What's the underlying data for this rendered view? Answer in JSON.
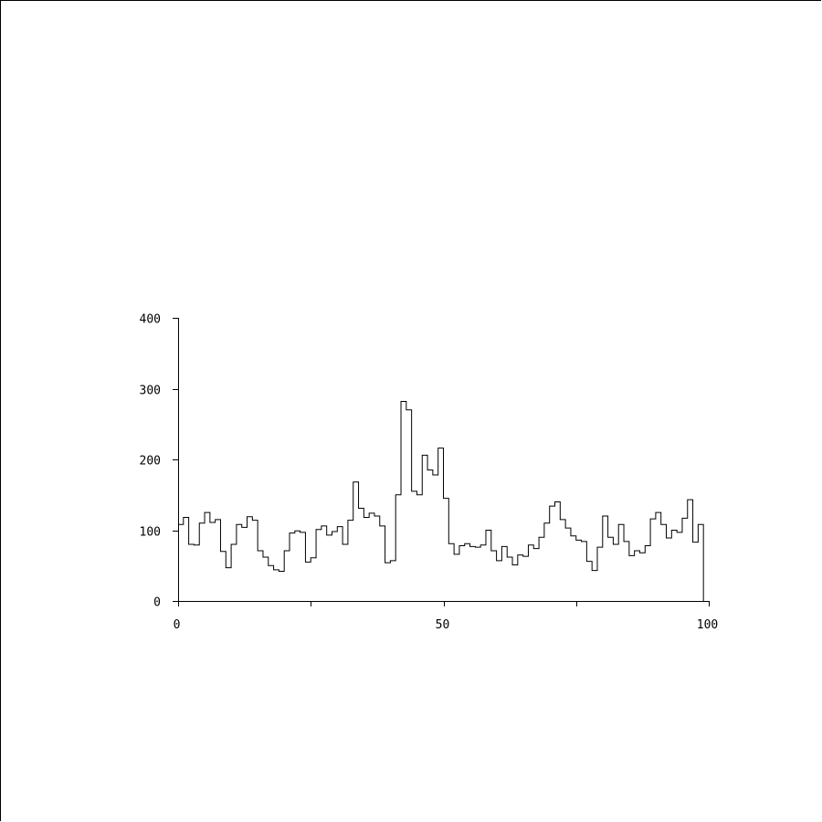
{
  "chart_data": {
    "type": "histogram",
    "title": "",
    "xlabel": "",
    "ylabel": "",
    "xlim": [
      0,
      100
    ],
    "ylim": [
      0,
      400
    ],
    "grid": false,
    "legend": "none",
    "line_color": "#000000",
    "x_ticks": [
      0,
      25,
      50,
      75,
      100
    ],
    "x_tick_labels": [
      "0",
      "",
      "50",
      "",
      "100"
    ],
    "y_ticks": [
      0,
      100,
      200,
      300,
      400
    ],
    "y_tick_labels": [
      "0",
      "100",
      "200",
      "300",
      "400"
    ],
    "bin_width": 1,
    "bin_edges_start": 0,
    "values": [
      108,
      118,
      80,
      79,
      110,
      125,
      111,
      115,
      70,
      47,
      80,
      108,
      104,
      119,
      114,
      71,
      62,
      50,
      44,
      42,
      71,
      96,
      99,
      97,
      55,
      61,
      101,
      106,
      93,
      98,
      105,
      80,
      114,
      168,
      131,
      118,
      124,
      120,
      106,
      54,
      57,
      150,
      282,
      270,
      155,
      150,
      206,
      185,
      178,
      216,
      145,
      81,
      66,
      78,
      81,
      77,
      76,
      79,
      100,
      71,
      57,
      77,
      62,
      51,
      65,
      63,
      79,
      74,
      90,
      110,
      134,
      140,
      115,
      103,
      92,
      86,
      84,
      56,
      43,
      76,
      120,
      90,
      80,
      108,
      84,
      64,
      71,
      68,
      78,
      116,
      125,
      108,
      89,
      100,
      97,
      117,
      143,
      83,
      108
    ]
  }
}
